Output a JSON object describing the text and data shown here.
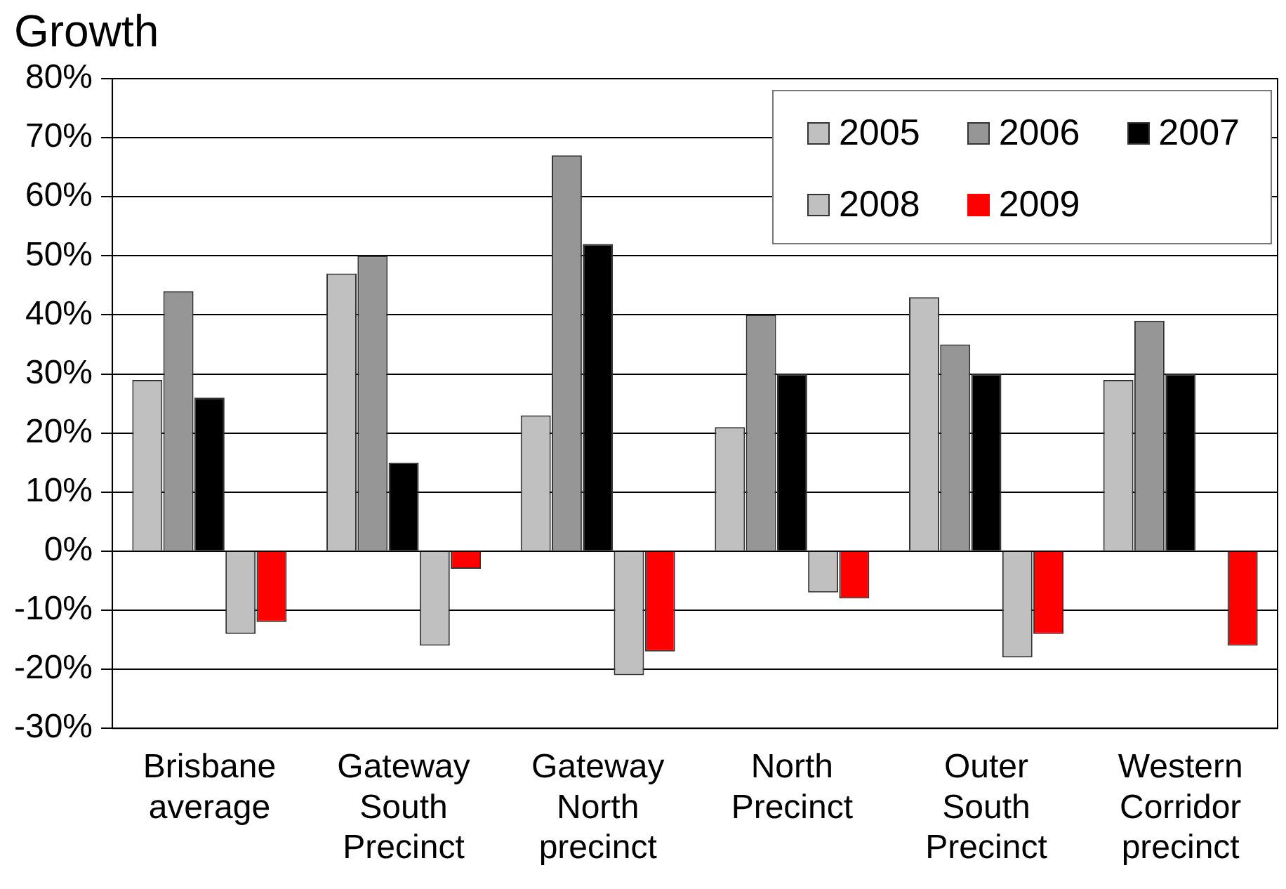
{
  "chart_data": {
    "type": "bar",
    "title": "Growth",
    "categories": [
      "Brisbane average",
      "Gateway South Precinct",
      "Gateway North precinct",
      "North Precinct",
      "Outer South Precinct",
      "Western Corridor precinct"
    ],
    "series": [
      {
        "name": "2005",
        "color": "#c0c0c0",
        "values": [
          29,
          47,
          23,
          21,
          43,
          29
        ]
      },
      {
        "name": "2006",
        "color": "#969696",
        "values": [
          44,
          50,
          67,
          40,
          35,
          39
        ]
      },
      {
        "name": "2007",
        "color": "#000000",
        "values": [
          26,
          15,
          52,
          30,
          30,
          30
        ]
      },
      {
        "name": "2008",
        "color": "#c0c0c0",
        "values": [
          -14,
          -16,
          -21,
          -7,
          -18,
          null
        ]
      },
      {
        "name": "2009",
        "color": "#ff0000",
        "values": [
          -12,
          -3,
          -17,
          -8,
          -14,
          -16
        ]
      }
    ],
    "ylim": [
      -30,
      80
    ],
    "yticks": [
      {
        "value": -30,
        "label": "-30%"
      },
      {
        "value": -20,
        "label": "-20%"
      },
      {
        "value": -10,
        "label": "-10%"
      },
      {
        "value": 0,
        "label": "0%"
      },
      {
        "value": 10,
        "label": "10%"
      },
      {
        "value": 20,
        "label": "20%"
      },
      {
        "value": 30,
        "label": "30%"
      },
      {
        "value": 40,
        "label": "40%"
      },
      {
        "value": 50,
        "label": "50%"
      },
      {
        "value": 60,
        "label": "60%"
      },
      {
        "value": 70,
        "label": "70%"
      },
      {
        "value": 80,
        "label": "80%"
      }
    ],
    "grid": "y",
    "legend": "top right"
  }
}
